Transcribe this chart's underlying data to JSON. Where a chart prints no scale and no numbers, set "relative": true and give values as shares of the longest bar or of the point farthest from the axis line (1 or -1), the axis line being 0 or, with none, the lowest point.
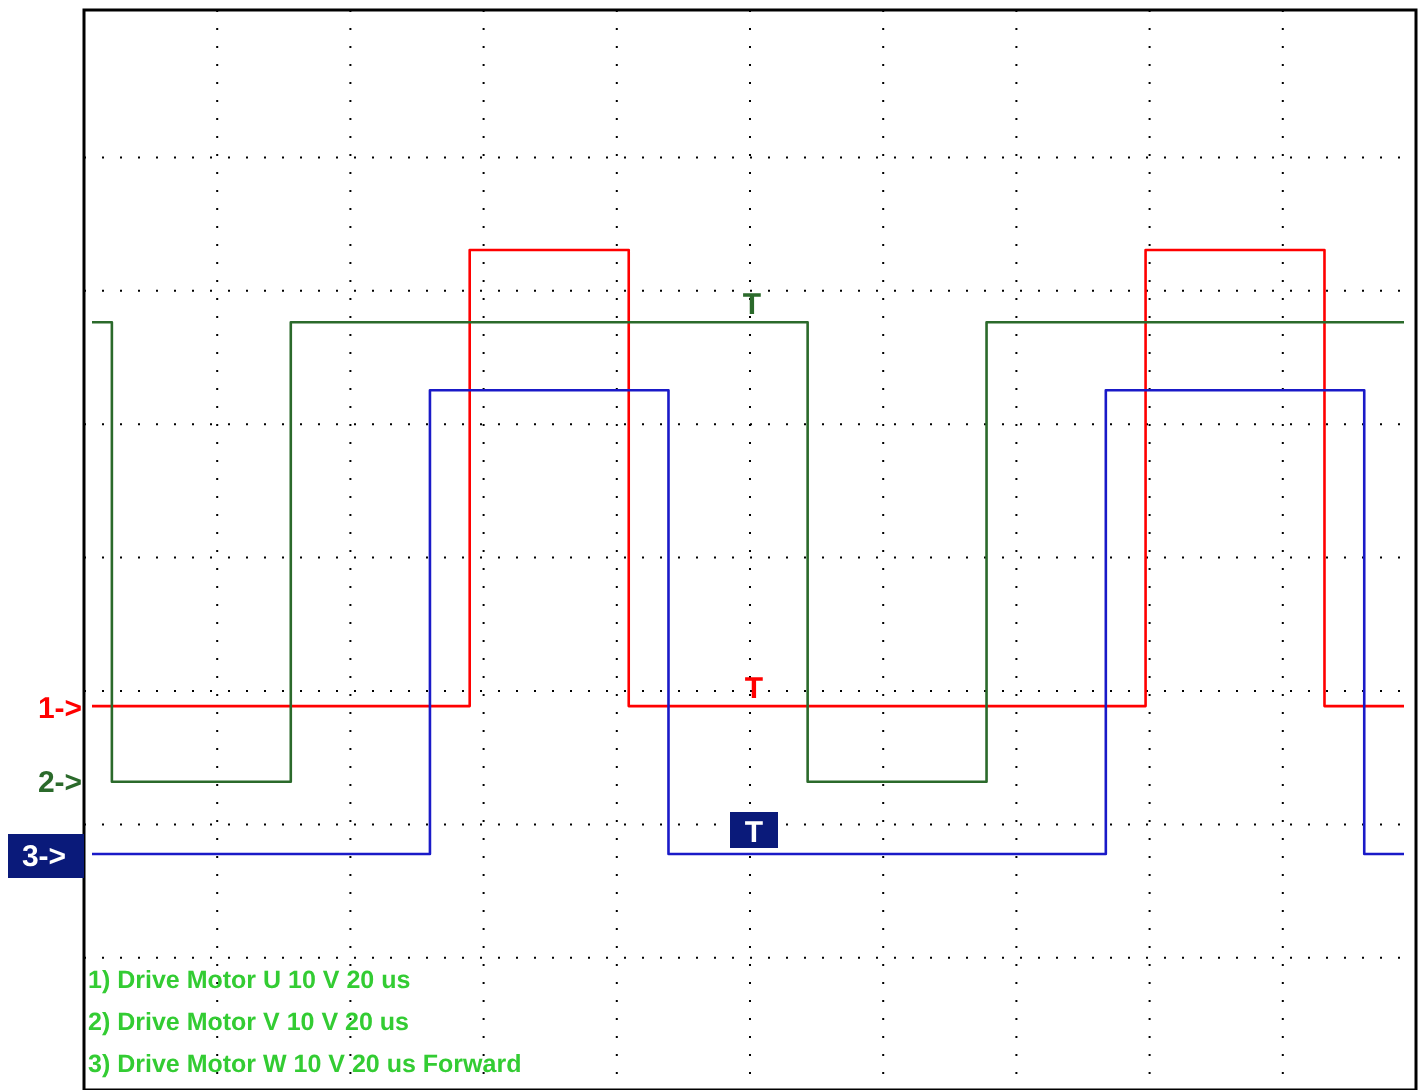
{
  "chart_data": {
    "type": "step",
    "relative": true,
    "grid": true,
    "categories": [
      null,
      null,
      null,
      null,
      null,
      null,
      null,
      null,
      null,
      null,
      null,
      null,
      null,
      null,
      null,
      null,
      null,
      null,
      null,
      null,
      null,
      null,
      null,
      null,
      null,
      null,
      null,
      null,
      null,
      null,
      null,
      null,
      null,
      null,
      null,
      null,
      null,
      null,
      null,
      null,
      null,
      null,
      null,
      null,
      null,
      null,
      null,
      null,
      null,
      null,
      null,
      null,
      null,
      null,
      null,
      null,
      null,
      null,
      null,
      null,
      null,
      null,
      null,
      null,
      null,
      null,
      null
    ],
    "series": [
      {
        "color": "#ff0000",
        "values": [
          0.457,
          0.457,
          0.457,
          0.457,
          0.457,
          0.457,
          0.457,
          0.457,
          0.457,
          0.457,
          0.457,
          0.457,
          0.457,
          0.457,
          0.457,
          0.457,
          0.457,
          0.457,
          0.457,
          1,
          1,
          1,
          1,
          1,
          1,
          1,
          1,
          0.457,
          0.457,
          0.457,
          0.457,
          0.457,
          0.457,
          0.457,
          0.457,
          0.457,
          0.457,
          0.457,
          0.457,
          0.457,
          0.457,
          0.457,
          0.457,
          0.457,
          0.457,
          0.457,
          0.457,
          0.457,
          0.457,
          0.457,
          0.457,
          0.457,
          0.457,
          1,
          1,
          1,
          1,
          1,
          1,
          1,
          1,
          1,
          0.457,
          0.457,
          0.457,
          0.457,
          0.457
        ]
      },
      {
        "color": "#2b6a2b",
        "values": [
          0.914,
          0.367,
          0.367,
          0.367,
          0.367,
          0.367,
          0.367,
          0.367,
          0.367,
          0.367,
          0.914,
          0.914,
          0.914,
          0.914,
          0.914,
          0.914,
          0.914,
          0.914,
          0.914,
          0.914,
          0.914,
          0.914,
          0.914,
          0.914,
          0.914,
          0.914,
          0.914,
          0.914,
          0.914,
          0.914,
          0.914,
          0.914,
          0.914,
          0.914,
          0.914,
          0.914,
          0.367,
          0.367,
          0.367,
          0.367,
          0.367,
          0.367,
          0.367,
          0.367,
          0.367,
          0.914,
          0.914,
          0.914,
          0.914,
          0.914,
          0.914,
          0.914,
          0.914,
          0.914,
          0.914,
          0.914,
          0.914,
          0.914,
          0.914,
          0.914,
          0.914,
          0.914,
          0.914,
          0.914,
          0.914,
          0.914,
          0.914
        ]
      },
      {
        "color": "#1a1ac8",
        "values": [
          0.281,
          0.281,
          0.281,
          0.281,
          0.281,
          0.281,
          0.281,
          0.281,
          0.281,
          0.281,
          0.281,
          0.281,
          0.281,
          0.281,
          0.281,
          0.281,
          0.281,
          0.833,
          0.833,
          0.833,
          0.833,
          0.833,
          0.833,
          0.833,
          0.833,
          0.833,
          0.833,
          0.833,
          0.833,
          0.281,
          0.281,
          0.281,
          0.281,
          0.281,
          0.281,
          0.281,
          0.281,
          0.281,
          0.281,
          0.281,
          0.281,
          0.281,
          0.281,
          0.281,
          0.281,
          0.281,
          0.281,
          0.281,
          0.281,
          0.281,
          0.281,
          0.833,
          0.833,
          0.833,
          0.833,
          0.833,
          0.833,
          0.833,
          0.833,
          0.833,
          0.833,
          0.833,
          0.833,
          0.833,
          0.281,
          0.281,
          0.281
        ]
      }
    ],
    "annotations": [
      "1->",
      "2->",
      "3->",
      "T",
      "T",
      "T",
      "1) Drive Motor U  10  V   20 us",
      "2) Drive Motor V  10  V   20 us",
      "3) Drive Motor W  10  V   20 us Forward"
    ]
  }
}
